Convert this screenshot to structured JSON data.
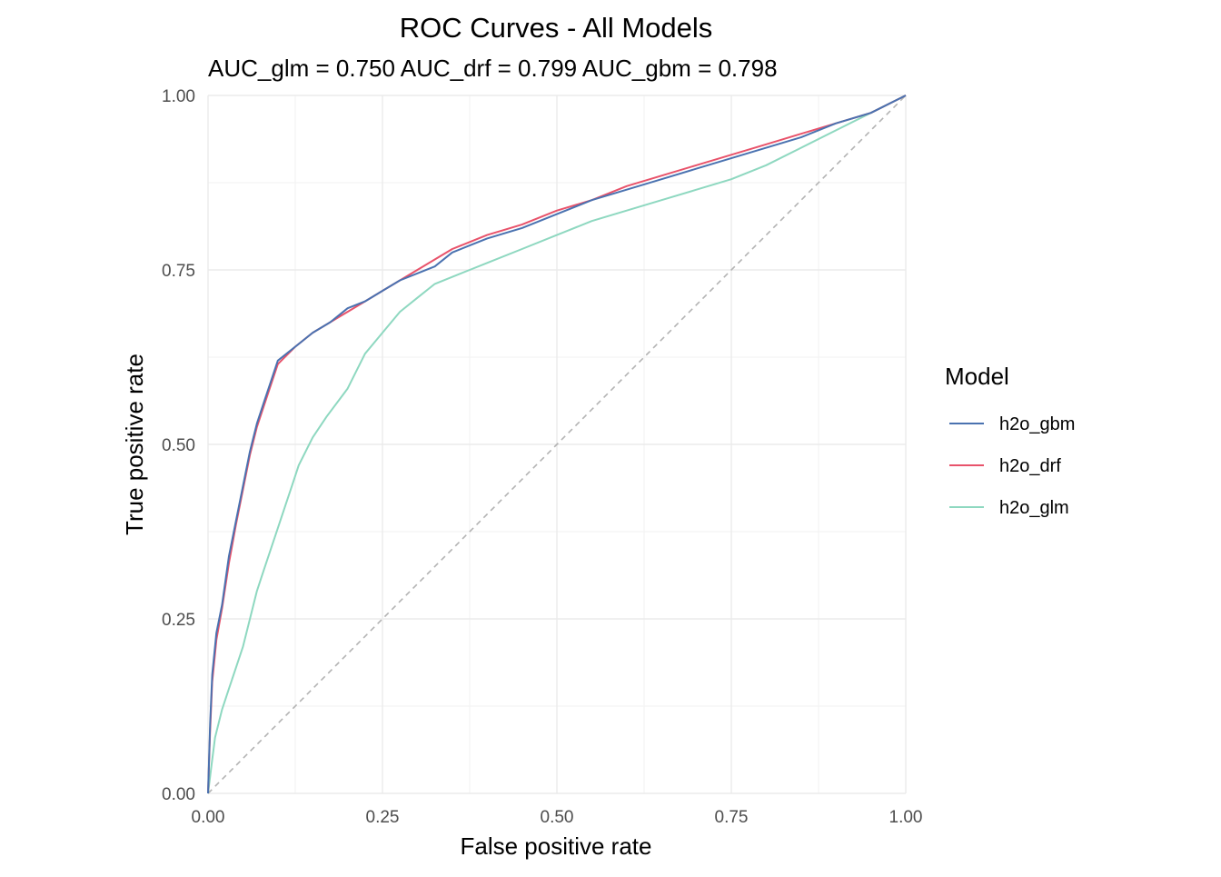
{
  "chart_data": {
    "type": "line",
    "title": "ROC Curves - All Models",
    "subtitle": "AUC_glm = 0.750  AUC_drf = 0.799  AUC_gbm = 0.798",
    "xlabel": "False positive rate",
    "ylabel": "True positive rate",
    "xlim": [
      0,
      1
    ],
    "ylim": [
      0,
      1
    ],
    "x_ticks": [
      "0.00",
      "0.25",
      "0.50",
      "0.75",
      "1.00"
    ],
    "y_ticks": [
      "0.00",
      "0.25",
      "0.50",
      "0.75",
      "1.00"
    ],
    "grid": true,
    "reference_line": {
      "x": [
        0,
        1
      ],
      "y": [
        0,
        1
      ],
      "style": "dashed",
      "color": "#b3b3b3"
    },
    "legend": {
      "title": "Model",
      "position": "right"
    },
    "series": [
      {
        "name": "h2o_gbm",
        "color": "#4a72b0",
        "points": [
          [
            0,
            0
          ],
          [
            0.003,
            0.1
          ],
          [
            0.006,
            0.17
          ],
          [
            0.012,
            0.23
          ],
          [
            0.02,
            0.27
          ],
          [
            0.03,
            0.34
          ],
          [
            0.04,
            0.39
          ],
          [
            0.05,
            0.44
          ],
          [
            0.06,
            0.49
          ],
          [
            0.07,
            0.53
          ],
          [
            0.08,
            0.56
          ],
          [
            0.09,
            0.59
          ],
          [
            0.1,
            0.62
          ],
          [
            0.125,
            0.64
          ],
          [
            0.15,
            0.66
          ],
          [
            0.175,
            0.675
          ],
          [
            0.2,
            0.695
          ],
          [
            0.225,
            0.705
          ],
          [
            0.25,
            0.72
          ],
          [
            0.275,
            0.735
          ],
          [
            0.3,
            0.745
          ],
          [
            0.325,
            0.755
          ],
          [
            0.35,
            0.775
          ],
          [
            0.375,
            0.785
          ],
          [
            0.4,
            0.795
          ],
          [
            0.45,
            0.81
          ],
          [
            0.5,
            0.83
          ],
          [
            0.55,
            0.85
          ],
          [
            0.6,
            0.865
          ],
          [
            0.65,
            0.88
          ],
          [
            0.7,
            0.895
          ],
          [
            0.75,
            0.91
          ],
          [
            0.8,
            0.925
          ],
          [
            0.85,
            0.94
          ],
          [
            0.9,
            0.96
          ],
          [
            0.95,
            0.975
          ],
          [
            1,
            1
          ]
        ]
      },
      {
        "name": "h2o_drf",
        "color": "#e8536b",
        "points": [
          [
            0,
            0
          ],
          [
            0.003,
            0.09
          ],
          [
            0.006,
            0.16
          ],
          [
            0.012,
            0.22
          ],
          [
            0.02,
            0.265
          ],
          [
            0.03,
            0.33
          ],
          [
            0.04,
            0.385
          ],
          [
            0.05,
            0.435
          ],
          [
            0.06,
            0.485
          ],
          [
            0.07,
            0.525
          ],
          [
            0.08,
            0.555
          ],
          [
            0.09,
            0.585
          ],
          [
            0.1,
            0.615
          ],
          [
            0.125,
            0.64
          ],
          [
            0.15,
            0.66
          ],
          [
            0.175,
            0.675
          ],
          [
            0.2,
            0.69
          ],
          [
            0.225,
            0.705
          ],
          [
            0.25,
            0.72
          ],
          [
            0.275,
            0.735
          ],
          [
            0.3,
            0.75
          ],
          [
            0.325,
            0.765
          ],
          [
            0.35,
            0.78
          ],
          [
            0.375,
            0.79
          ],
          [
            0.4,
            0.8
          ],
          [
            0.45,
            0.815
          ],
          [
            0.5,
            0.835
          ],
          [
            0.55,
            0.85
          ],
          [
            0.6,
            0.87
          ],
          [
            0.65,
            0.885
          ],
          [
            0.7,
            0.9
          ],
          [
            0.75,
            0.915
          ],
          [
            0.8,
            0.93
          ],
          [
            0.85,
            0.945
          ],
          [
            0.9,
            0.96
          ],
          [
            0.95,
            0.975
          ],
          [
            1,
            1
          ]
        ]
      },
      {
        "name": "h2o_glm",
        "color": "#8ed8c0",
        "points": [
          [
            0,
            0
          ],
          [
            0.005,
            0.04
          ],
          [
            0.01,
            0.08
          ],
          [
            0.02,
            0.12
          ],
          [
            0.03,
            0.15
          ],
          [
            0.04,
            0.18
          ],
          [
            0.05,
            0.21
          ],
          [
            0.06,
            0.25
          ],
          [
            0.07,
            0.29
          ],
          [
            0.08,
            0.32
          ],
          [
            0.09,
            0.35
          ],
          [
            0.1,
            0.38
          ],
          [
            0.11,
            0.41
          ],
          [
            0.12,
            0.44
          ],
          [
            0.13,
            0.47
          ],
          [
            0.15,
            0.51
          ],
          [
            0.17,
            0.54
          ],
          [
            0.2,
            0.58
          ],
          [
            0.225,
            0.63
          ],
          [
            0.25,
            0.66
          ],
          [
            0.275,
            0.69
          ],
          [
            0.3,
            0.71
          ],
          [
            0.325,
            0.73
          ],
          [
            0.35,
            0.74
          ],
          [
            0.375,
            0.75
          ],
          [
            0.4,
            0.76
          ],
          [
            0.45,
            0.78
          ],
          [
            0.5,
            0.8
          ],
          [
            0.55,
            0.82
          ],
          [
            0.6,
            0.835
          ],
          [
            0.65,
            0.85
          ],
          [
            0.7,
            0.865
          ],
          [
            0.75,
            0.88
          ],
          [
            0.8,
            0.9
          ],
          [
            0.85,
            0.925
          ],
          [
            0.9,
            0.95
          ],
          [
            0.95,
            0.975
          ],
          [
            1,
            1
          ]
        ]
      }
    ]
  }
}
